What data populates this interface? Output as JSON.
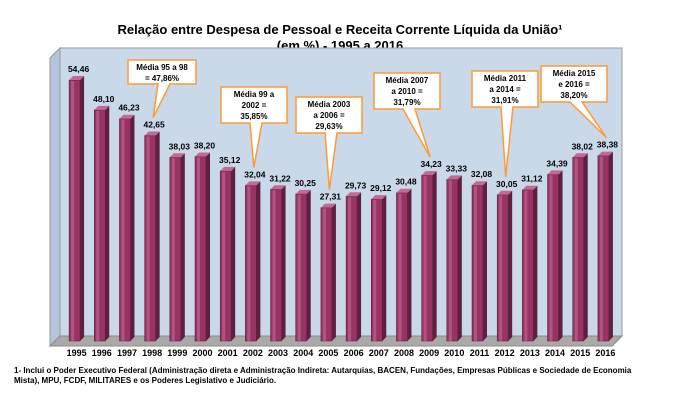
{
  "chart_data": {
    "type": "bar",
    "title": "Relação entre Despesa de Pessoal e Receita Corrente Líquida da União¹",
    "subtitle": "(em %) - 1995 a 2016",
    "categories": [
      "1995",
      "1996",
      "1997",
      "1998",
      "1999",
      "2000",
      "2001",
      "2002",
      "2003",
      "2004",
      "2005",
      "2006",
      "2007",
      "2008",
      "2009",
      "2010",
      "2011",
      "2012",
      "2013",
      "2014",
      "2015",
      "2016"
    ],
    "values": [
      54.46,
      48.1,
      46.23,
      42.65,
      38.03,
      38.2,
      35.12,
      32.04,
      31.22,
      30.25,
      27.31,
      29.73,
      29.12,
      30.48,
      34.23,
      33.33,
      32.08,
      30.05,
      31.12,
      34.39,
      38.02,
      38.38
    ],
    "value_labels": [
      "54,46",
      "48,10",
      "46,23",
      "42,65",
      "38,03",
      "38,20",
      "35,12",
      "32,04",
      "31,22",
      "30,25",
      "27,31",
      "29,73",
      "29,12",
      "30,48",
      "34,23",
      "33,33",
      "32,08",
      "30,05",
      "31,12",
      "34,39",
      "38,02",
      "38,38"
    ],
    "ylim": [
      0,
      60
    ],
    "grid": false,
    "colors": {
      "bar": "#993366",
      "bar_dark": "#5e1f40",
      "bar_light": "#c26a95",
      "plot_bg": "#c9d9ea",
      "callout_border": "#ff9933"
    },
    "annotations": [
      {
        "lines": [
          "Média 95 a 98",
          "= 47,86%"
        ],
        "target": "1998"
      },
      {
        "lines": [
          "Média 99 a",
          "2002 =",
          "35,85%"
        ],
        "target": "2002"
      },
      {
        "lines": [
          "Média 2003",
          "a 2006 =",
          "29,63%"
        ],
        "target": "2005"
      },
      {
        "lines": [
          "Média 2007",
          "a 2010 =",
          "31,79%"
        ],
        "target": "2009"
      },
      {
        "lines": [
          "Média 2011",
          "a 2014 =",
          "31,91%"
        ],
        "target": "2012"
      },
      {
        "lines": [
          "Média 2015",
          "e 2016 =",
          "38,20%"
        ],
        "target": "2016"
      }
    ]
  },
  "footnote": "1- Inclui o Poder Executivo Federal (Administração direta e Administração Indireta: Autarquias, BACEN, Fundações, Empresas Públicas e Sociedade de Economia Mista), MPU, FCDF, MILITARES e os Poderes Legislativo e Judiciário."
}
